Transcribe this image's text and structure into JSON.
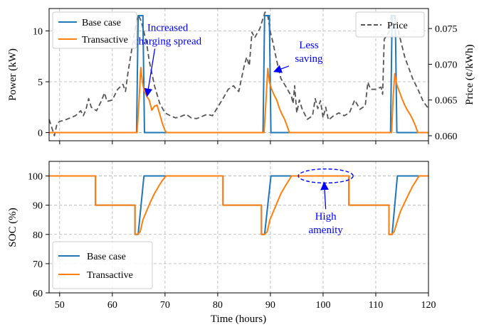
{
  "chart_data": [
    {
      "id": "power",
      "type": "line",
      "xlim": [
        48,
        120
      ],
      "ylim": [
        -0.8,
        12.2
      ],
      "y2lim": [
        0.0593,
        0.0778
      ],
      "x_ticks": [
        50,
        60,
        70,
        80,
        90,
        100,
        110,
        120
      ],
      "y_ticks": [
        0,
        5,
        10
      ],
      "y2_ticks": [
        0.06,
        0.065,
        0.07,
        0.075
      ],
      "y2_tick_labels": [
        "0.060",
        "0.065",
        "0.070",
        "0.075"
      ],
      "ylabel": "Power (kW)",
      "y2label": "Price (¢/kWh)",
      "grid": true,
      "series": [
        {
          "name": "Base case",
          "axis": "left",
          "color": "#1f77b4",
          "points": [
            [
              48,
              0
            ],
            [
              64.6,
              0
            ],
            [
              64.9,
              11.5
            ],
            [
              65.8,
              11.5
            ],
            [
              66.1,
              0
            ],
            [
              88.6,
              0
            ],
            [
              88.9,
              11.5
            ],
            [
              89.8,
              11.5
            ],
            [
              90.1,
              0
            ],
            [
              112.8,
              0
            ],
            [
              113.1,
              11.5
            ],
            [
              113.7,
              11.5
            ],
            [
              114,
              0
            ],
            [
              120,
              0
            ]
          ]
        },
        {
          "name": "Transactive",
          "axis": "left",
          "color": "#ff7f0e",
          "points": [
            [
              48,
              0
            ],
            [
              64.7,
              0
            ],
            [
              65.1,
              3.5
            ],
            [
              65.4,
              6.4
            ],
            [
              65.7,
              5
            ],
            [
              66,
              4.2
            ],
            [
              66.5,
              3.6
            ],
            [
              67,
              3.2
            ],
            [
              67.5,
              2.2
            ],
            [
              68,
              2.6
            ],
            [
              68.5,
              2.7
            ],
            [
              69,
              1.8
            ],
            [
              69.5,
              0.9
            ],
            [
              70,
              0.2
            ],
            [
              70.3,
              0
            ],
            [
              88.8,
              0
            ],
            [
              89.2,
              3.5
            ],
            [
              89.5,
              6.3
            ],
            [
              89.8,
              5
            ],
            [
              90.2,
              4.3
            ],
            [
              90.7,
              3.7
            ],
            [
              91.2,
              3.2
            ],
            [
              91.7,
              2.4
            ],
            [
              92.2,
              1.8
            ],
            [
              92.7,
              1.3
            ],
            [
              93.2,
              0.6
            ],
            [
              93.6,
              0
            ],
            [
              113,
              0
            ],
            [
              113.3,
              3.5
            ],
            [
              113.6,
              5.8
            ],
            [
              114,
              4.7
            ],
            [
              114.5,
              4
            ],
            [
              115,
              3.3
            ],
            [
              115.5,
              2.7
            ],
            [
              116,
              2.2
            ],
            [
              116.5,
              1.8
            ],
            [
              117,
              1.3
            ],
            [
              117.5,
              0.7
            ],
            [
              118,
              0
            ],
            [
              120,
              0
            ]
          ]
        },
        {
          "name": "Price",
          "axis": "right",
          "color": "#555555",
          "dashed": true,
          "points": [
            [
              48,
              0.0623
            ],
            [
              49,
              0.06
            ],
            [
              49.5,
              0.0617
            ],
            [
              50,
              0.062
            ],
            [
              51,
              0.0622
            ],
            [
              52,
              0.0625
            ],
            [
              53,
              0.0628
            ],
            [
              54,
              0.0635
            ],
            [
              54.5,
              0.0628
            ],
            [
              55,
              0.0637
            ],
            [
              55.5,
              0.0652
            ],
            [
              56,
              0.064
            ],
            [
              57,
              0.0635
            ],
            [
              58,
              0.065
            ],
            [
              58.5,
              0.066
            ],
            [
              59,
              0.0648
            ],
            [
              60,
              0.065
            ],
            [
              61,
              0.0665
            ],
            [
              62,
              0.0672
            ],
            [
              62.5,
              0.0662
            ],
            [
              63,
              0.069
            ],
            [
              64,
              0.0735
            ],
            [
              64.6,
              0.0762
            ],
            [
              65,
              0.0768
            ],
            [
              65.5,
              0.076
            ],
            [
              66,
              0.0745
            ],
            [
              66.5,
              0.073
            ],
            [
              67,
              0.0705
            ],
            [
              68,
              0.067
            ],
            [
              69,
              0.0645
            ],
            [
              70,
              0.0632
            ],
            [
              71,
              0.0628
            ],
            [
              72,
              0.0625
            ],
            [
              73,
              0.0627
            ],
            [
              74,
              0.063
            ],
            [
              75,
              0.0625
            ],
            [
              76,
              0.0624
            ],
            [
              77,
              0.0627
            ],
            [
              78,
              0.063
            ],
            [
              79,
              0.0628
            ],
            [
              80,
              0.064
            ],
            [
              81,
              0.0652
            ],
            [
              82,
              0.0665
            ],
            [
              83,
              0.067
            ],
            [
              83.5,
              0.0665
            ],
            [
              84,
              0.0662
            ],
            [
              85,
              0.0697
            ],
            [
              85.5,
              0.071
            ],
            [
              86,
              0.0698
            ],
            [
              86.5,
              0.0745
            ],
            [
              87,
              0.0737
            ],
            [
              88,
              0.075
            ],
            [
              88.5,
              0.0762
            ],
            [
              89,
              0.0773
            ],
            [
              89.5,
              0.0768
            ],
            [
              90,
              0.0745
            ],
            [
              90.5,
              0.073
            ],
            [
              91,
              0.0712
            ],
            [
              91.5,
              0.0695
            ],
            [
              92,
              0.068
            ],
            [
              93,
              0.0668
            ],
            [
              94,
              0.0655
            ],
            [
              94.3,
              0.0645
            ],
            [
              94.6,
              0.067
            ],
            [
              95,
              0.0632
            ],
            [
              95.5,
              0.065
            ],
            [
              96,
              0.0638
            ],
            [
              97,
              0.0623
            ],
            [
              98,
              0.0628
            ],
            [
              98.5,
              0.0652
            ],
            [
              99,
              0.0638
            ],
            [
              99.5,
              0.0649
            ],
            [
              100,
              0.0625
            ],
            [
              100.5,
              0.064
            ],
            [
              101,
              0.0622
            ],
            [
              102,
              0.0628
            ],
            [
              103,
              0.0632
            ],
            [
              104,
              0.0628
            ],
            [
              105,
              0.0632
            ],
            [
              106,
              0.065
            ],
            [
              107,
              0.0637
            ],
            [
              108,
              0.0642
            ],
            [
              108.5,
              0.0675
            ],
            [
              109,
              0.0665
            ],
            [
              110,
              0.0665
            ],
            [
              111,
              0.0668
            ],
            [
              111.3,
              0.0658
            ],
            [
              111.6,
              0.0735
            ],
            [
              112.5,
              0.0745
            ],
            [
              113,
              0.077
            ],
            [
              113.5,
              0.0768
            ],
            [
              114,
              0.0755
            ],
            [
              114.5,
              0.074
            ],
            [
              115,
              0.0725
            ],
            [
              115.5,
              0.071
            ],
            [
              116,
              0.07
            ],
            [
              117,
              0.068
            ],
            [
              118,
              0.0665
            ],
            [
              119,
              0.0648
            ],
            [
              120,
              0.0638
            ]
          ]
        }
      ],
      "legend": {
        "left": {
          "placement": "top-left",
          "entries": [
            "Base case",
            "Transactive"
          ]
        },
        "right": {
          "placement": "top-right",
          "entries": [
            "Price"
          ]
        }
      },
      "annotations": [
        {
          "lines": [
            "Increased",
            "charging spread"
          ],
          "color": "#0000ff",
          "text_x": 70.5,
          "text_y": 10,
          "arrow_to": [
            66.6,
            3.6
          ]
        },
        {
          "lines": [
            "Less",
            "saving"
          ],
          "color": "#0000ff",
          "text_x": 97.3,
          "text_y": 8.3,
          "arrow_to": [
            90.7,
            6.0
          ]
        }
      ]
    },
    {
      "id": "soc",
      "type": "line",
      "xlim": [
        48,
        120
      ],
      "ylim": [
        60,
        105
      ],
      "x_ticks": [
        50,
        60,
        70,
        80,
        90,
        100,
        110,
        120
      ],
      "y_ticks": [
        60,
        70,
        80,
        90,
        100
      ],
      "xlabel": "Time (hours)",
      "ylabel": "SOC (%)",
      "grid": true,
      "series": [
        {
          "name": "Base case",
          "color": "#1f77b4",
          "points": [
            [
              48,
              100
            ],
            [
              56.8,
              100
            ],
            [
              56.8,
              90
            ],
            [
              64.3,
              90
            ],
            [
              64.3,
              80
            ],
            [
              64.9,
              80
            ],
            [
              66,
              100
            ],
            [
              81,
              100
            ],
            [
              81,
              90
            ],
            [
              88.3,
              90
            ],
            [
              88.3,
              80
            ],
            [
              88.9,
              80
            ],
            [
              90.1,
              100
            ],
            [
              104.9,
              100
            ],
            [
              104.9,
              90
            ],
            [
              112.5,
              90
            ],
            [
              112.5,
              80
            ],
            [
              113.1,
              80
            ],
            [
              114.1,
              100
            ],
            [
              120,
              100
            ]
          ]
        },
        {
          "name": "Transactive",
          "color": "#ff7f0e",
          "points": [
            [
              48,
              100
            ],
            [
              56.8,
              100
            ],
            [
              56.8,
              90
            ],
            [
              64.3,
              90
            ],
            [
              64.3,
              80
            ],
            [
              64.8,
              80
            ],
            [
              65.3,
              81
            ],
            [
              65.8,
              85
            ],
            [
              66.5,
              88
            ],
            [
              67.2,
              91
            ],
            [
              68,
              94
            ],
            [
              68.8,
              96.5
            ],
            [
              69.5,
              98.5
            ],
            [
              70.2,
              100
            ],
            [
              81,
              100
            ],
            [
              81,
              90
            ],
            [
              88.3,
              90
            ],
            [
              88.3,
              80
            ],
            [
              88.9,
              80
            ],
            [
              89.4,
              81
            ],
            [
              89.9,
              85
            ],
            [
              90.6,
              88
            ],
            [
              91.3,
              91
            ],
            [
              92,
              94
            ],
            [
              92.8,
              96.5
            ],
            [
              93.5,
              98.5
            ],
            [
              94,
              100
            ],
            [
              104.9,
              100
            ],
            [
              104.9,
              90
            ],
            [
              112.5,
              90
            ],
            [
              112.5,
              80
            ],
            [
              113,
              80
            ],
            [
              113.5,
              81
            ],
            [
              114,
              84
            ],
            [
              114.7,
              88
            ],
            [
              115.5,
              91
            ],
            [
              116.3,
              94
            ],
            [
              117,
              96.5
            ],
            [
              117.7,
              98.5
            ],
            [
              118.2,
              100
            ],
            [
              120,
              100
            ]
          ]
        }
      ],
      "legend": {
        "placement": "lower-left",
        "entries": [
          "Base case",
          "Transactive"
        ]
      },
      "annotations": [
        {
          "lines": [
            "High",
            "amenity"
          ],
          "color": "#0000ff",
          "text_x": 100.5,
          "text_y": 85,
          "arrow_to": [
            100.2,
            97.8
          ],
          "ellipse": {
            "cx": 100.5,
            "cy": 100,
            "rx": 5.2,
            "ry": 2.4
          }
        }
      ]
    }
  ]
}
